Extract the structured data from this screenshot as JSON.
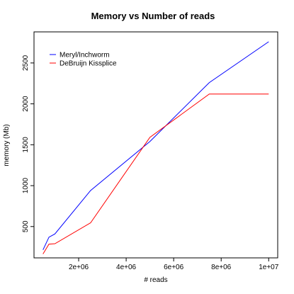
{
  "chart_data": {
    "type": "line",
    "title": "Memory vs Number of reads",
    "xlabel": "# reads",
    "ylabel": "memory (Mb)",
    "xlim": [
      120000,
      10380000
    ],
    "ylim": [
      117,
      2880
    ],
    "x_ticks": [
      2000000,
      4000000,
      6000000,
      8000000,
      10000000
    ],
    "x_tick_labels": [
      "2e+06",
      "4e+06",
      "6e+06",
      "8e+06",
      "1e+07"
    ],
    "y_ticks": [
      500,
      1000,
      1500,
      2000,
      2500
    ],
    "y_tick_labels": [
      "500",
      "1000",
      "1500",
      "2000",
      "2500"
    ],
    "grid": false,
    "legend_position": "top-left",
    "series": [
      {
        "name": "Meryl/Inchworm",
        "color": "#0000ff",
        "x": [
          500000,
          750000,
          1000000,
          2500000,
          5000000,
          7500000,
          10000000
        ],
        "y": [
          215,
          370,
          410,
          940,
          1540,
          2260,
          2760
        ]
      },
      {
        "name": "DeBruijn Kissplice",
        "color": "#ff0000",
        "x": [
          500000,
          750000,
          1000000,
          2500000,
          5000000,
          7500000,
          10000000
        ],
        "y": [
          165,
          285,
          290,
          545,
          1590,
          2120,
          2120
        ]
      }
    ]
  }
}
